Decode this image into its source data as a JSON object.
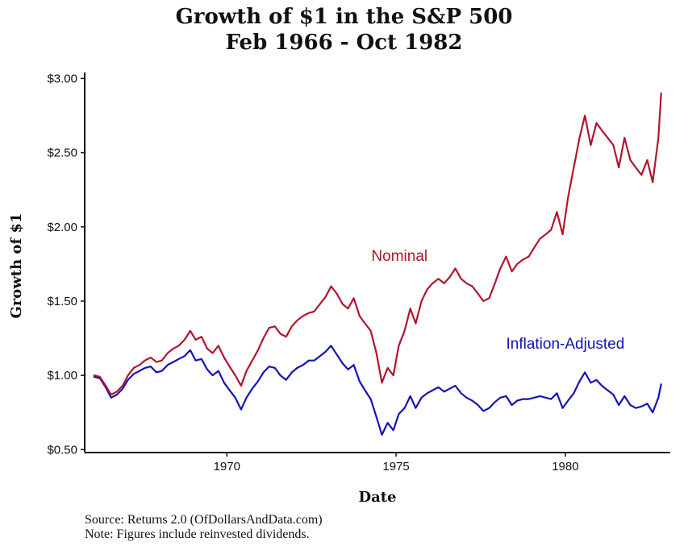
{
  "chart_data": {
    "type": "line",
    "title": [
      "Growth of $1 in the S&P 500",
      "Feb 1966 - Oct 1982"
    ],
    "xlabel": "Date",
    "ylabel": "Growth of $1",
    "xlim": [
      1965.8,
      1983.1
    ],
    "ylim": [
      0.48,
      3.04
    ],
    "x_ticks": [
      1970,
      1975,
      1980
    ],
    "x_tick_labels": [
      "1970",
      "1975",
      "1980"
    ],
    "y_ticks": [
      0.5,
      1.0,
      1.5,
      2.0,
      2.5,
      3.0
    ],
    "y_tick_labels": [
      "$0.50",
      "$1.00",
      "$1.50",
      "$2.00",
      "$2.50",
      "$3.00"
    ],
    "grid": false,
    "annotations": [
      {
        "text": "Nominal",
        "x": 1975.1,
        "y": 1.77,
        "series": "Nominal"
      },
      {
        "text": "Inflation-Adjusted",
        "x": 1980.0,
        "y": 1.18,
        "series": "Inflation-Adjusted"
      }
    ],
    "colors": {
      "Nominal": "#b0162d",
      "Inflation-Adjusted": "#1414b4"
    },
    "series": [
      {
        "name": "Nominal",
        "x": [
          1966.08,
          1966.25,
          1966.42,
          1966.58,
          1966.75,
          1966.92,
          1967.08,
          1967.25,
          1967.42,
          1967.58,
          1967.75,
          1967.92,
          1968.08,
          1968.25,
          1968.42,
          1968.58,
          1968.75,
          1968.92,
          1969.08,
          1969.25,
          1969.42,
          1969.58,
          1969.75,
          1969.92,
          1970.08,
          1970.25,
          1970.42,
          1970.58,
          1970.75,
          1970.92,
          1971.08,
          1971.25,
          1971.42,
          1971.58,
          1971.75,
          1971.92,
          1972.08,
          1972.25,
          1972.42,
          1972.58,
          1972.75,
          1972.92,
          1973.08,
          1973.25,
          1973.42,
          1973.58,
          1973.75,
          1973.92,
          1974.08,
          1974.25,
          1974.42,
          1974.58,
          1974.75,
          1974.92,
          1975.08,
          1975.25,
          1975.42,
          1975.58,
          1975.75,
          1975.92,
          1976.08,
          1976.25,
          1976.42,
          1976.58,
          1976.75,
          1976.92,
          1977.08,
          1977.25,
          1977.42,
          1977.58,
          1977.75,
          1977.92,
          1978.08,
          1978.25,
          1978.42,
          1978.58,
          1978.75,
          1978.92,
          1979.08,
          1979.25,
          1979.42,
          1979.58,
          1979.75,
          1979.92,
          1980.08,
          1980.25,
          1980.42,
          1980.58,
          1980.75,
          1980.92,
          1981.08,
          1981.25,
          1981.42,
          1981.58,
          1981.75,
          1981.92,
          1982.08,
          1982.25,
          1982.42,
          1982.58,
          1982.75,
          1982.83
        ],
        "values": [
          1.0,
          0.99,
          0.93,
          0.87,
          0.89,
          0.93,
          1.0,
          1.05,
          1.07,
          1.1,
          1.12,
          1.09,
          1.1,
          1.15,
          1.18,
          1.2,
          1.24,
          1.3,
          1.24,
          1.26,
          1.18,
          1.15,
          1.2,
          1.12,
          1.06,
          1.0,
          0.93,
          1.03,
          1.1,
          1.17,
          1.25,
          1.32,
          1.33,
          1.28,
          1.26,
          1.33,
          1.37,
          1.4,
          1.42,
          1.43,
          1.48,
          1.53,
          1.6,
          1.55,
          1.48,
          1.45,
          1.52,
          1.4,
          1.35,
          1.3,
          1.15,
          0.95,
          1.05,
          1.0,
          1.2,
          1.3,
          1.45,
          1.35,
          1.5,
          1.58,
          1.62,
          1.65,
          1.62,
          1.66,
          1.72,
          1.65,
          1.62,
          1.6,
          1.55,
          1.5,
          1.52,
          1.62,
          1.72,
          1.8,
          1.7,
          1.75,
          1.78,
          1.8,
          1.86,
          1.92,
          1.95,
          1.98,
          2.1,
          1.95,
          2.2,
          2.4,
          2.6,
          2.75,
          2.55,
          2.7,
          2.65,
          2.6,
          2.55,
          2.4,
          2.6,
          2.45,
          2.4,
          2.35,
          2.45,
          2.3,
          2.6,
          2.9
        ]
      },
      {
        "name": "Inflation-Adjusted",
        "x": [
          1966.08,
          1966.25,
          1966.42,
          1966.58,
          1966.75,
          1966.92,
          1967.08,
          1967.25,
          1967.42,
          1967.58,
          1967.75,
          1967.92,
          1968.08,
          1968.25,
          1968.42,
          1968.58,
          1968.75,
          1968.92,
          1969.08,
          1969.25,
          1969.42,
          1969.58,
          1969.75,
          1969.92,
          1970.08,
          1970.25,
          1970.42,
          1970.58,
          1970.75,
          1970.92,
          1971.08,
          1971.25,
          1971.42,
          1971.58,
          1971.75,
          1971.92,
          1972.08,
          1972.25,
          1972.42,
          1972.58,
          1972.75,
          1972.92,
          1973.08,
          1973.25,
          1973.42,
          1973.58,
          1973.75,
          1973.92,
          1974.08,
          1974.25,
          1974.42,
          1974.58,
          1974.75,
          1974.92,
          1975.08,
          1975.25,
          1975.42,
          1975.58,
          1975.75,
          1975.92,
          1976.08,
          1976.25,
          1976.42,
          1976.58,
          1976.75,
          1976.92,
          1977.08,
          1977.25,
          1977.42,
          1977.58,
          1977.75,
          1977.92,
          1978.08,
          1978.25,
          1978.42,
          1978.58,
          1978.75,
          1978.92,
          1979.08,
          1979.25,
          1979.42,
          1979.58,
          1979.75,
          1979.92,
          1980.08,
          1980.25,
          1980.42,
          1980.58,
          1980.75,
          1980.92,
          1981.08,
          1981.25,
          1981.42,
          1981.58,
          1981.75,
          1981.92,
          1982.08,
          1982.25,
          1982.42,
          1982.58,
          1982.75,
          1982.83
        ],
        "values": [
          0.99,
          0.98,
          0.92,
          0.85,
          0.87,
          0.91,
          0.97,
          1.01,
          1.03,
          1.05,
          1.06,
          1.02,
          1.03,
          1.07,
          1.09,
          1.11,
          1.13,
          1.17,
          1.1,
          1.11,
          1.04,
          1.0,
          1.03,
          0.95,
          0.9,
          0.85,
          0.77,
          0.85,
          0.91,
          0.96,
          1.02,
          1.06,
          1.05,
          1.0,
          0.97,
          1.02,
          1.05,
          1.07,
          1.1,
          1.1,
          1.13,
          1.16,
          1.2,
          1.14,
          1.08,
          1.04,
          1.07,
          0.96,
          0.9,
          0.84,
          0.72,
          0.6,
          0.68,
          0.63,
          0.74,
          0.78,
          0.86,
          0.78,
          0.85,
          0.88,
          0.9,
          0.92,
          0.89,
          0.91,
          0.93,
          0.88,
          0.85,
          0.83,
          0.8,
          0.76,
          0.78,
          0.82,
          0.85,
          0.86,
          0.8,
          0.83,
          0.84,
          0.84,
          0.85,
          0.86,
          0.85,
          0.84,
          0.88,
          0.78,
          0.83,
          0.88,
          0.96,
          1.02,
          0.95,
          0.97,
          0.93,
          0.9,
          0.87,
          0.8,
          0.86,
          0.8,
          0.78,
          0.79,
          0.81,
          0.75,
          0.85,
          0.94
        ]
      }
    ]
  },
  "source_note": "Source: Returns 2.0 (OfDollarsAndData.com)",
  "dividend_note": "Note: Figures include reinvested dividends."
}
